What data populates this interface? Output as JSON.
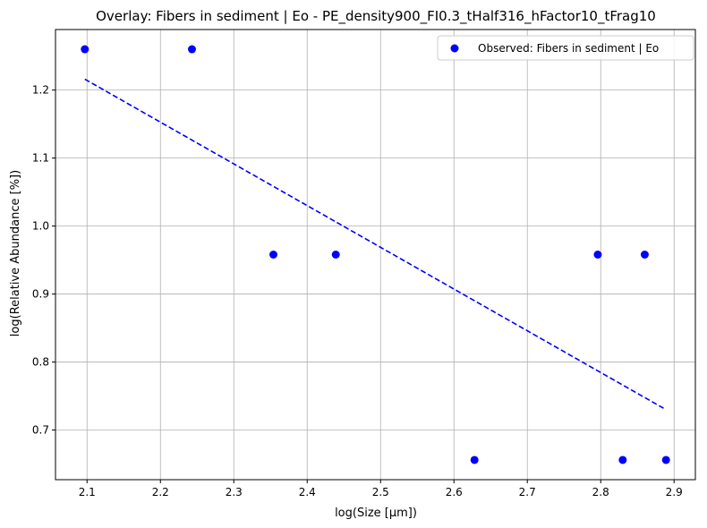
{
  "chart_data": {
    "type": "scatter",
    "title": "Overlay: Fibers in sediment | Eo - PE_density900_FI0.3_tHalf316_hFactor10_tFrag10",
    "xlabel": "log(Size [µm])",
    "ylabel": "log(Relative Abundance [%])",
    "xlim": [
      2.057,
      2.929
    ],
    "ylim": [
      0.627,
      1.289
    ],
    "xticks": [
      2.1,
      2.2,
      2.3,
      2.4,
      2.5,
      2.6,
      2.7,
      2.8,
      2.9
    ],
    "xtick_labels": [
      "2.1",
      "2.2",
      "2.3",
      "2.4",
      "2.5",
      "2.6",
      "2.7",
      "2.8",
      "2.9"
    ],
    "yticks": [
      0.7,
      0.8,
      0.9,
      1.0,
      1.1,
      1.2
    ],
    "ytick_labels": [
      "0.7",
      "0.8",
      "0.9",
      "1.0",
      "1.1",
      "1.2"
    ],
    "grid": true,
    "legend_position": "top-right",
    "series": [
      {
        "name": "Observed: Fibers in sediment | Eo",
        "kind": "scatter",
        "color": "#0000ff",
        "x": [
          2.097,
          2.243,
          2.354,
          2.439,
          2.628,
          2.796,
          2.83,
          2.86,
          2.889
        ],
        "y": [
          1.26,
          1.26,
          0.958,
          0.958,
          0.656,
          0.958,
          0.656,
          0.958,
          0.656
        ]
      },
      {
        "kind": "line",
        "style": "dashed",
        "color": "#0000ff",
        "x": [
          2.097,
          2.889
        ],
        "y": [
          1.216,
          0.73
        ]
      }
    ]
  }
}
